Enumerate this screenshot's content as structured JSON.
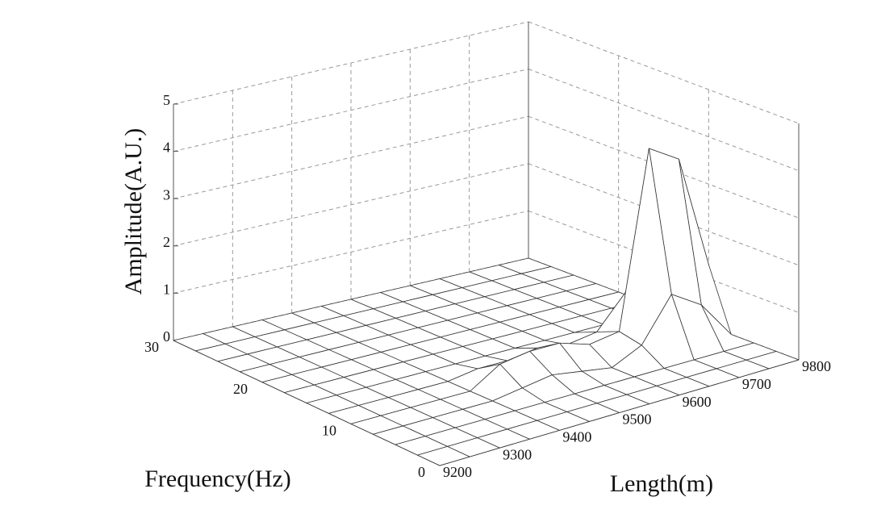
{
  "chart_data": {
    "type": "surface",
    "xlabel": "Length(m)",
    "ylabel": "Frequency(Hz)",
    "zlabel": "Amplitude(A.U.)",
    "x": [
      9200,
      9250,
      9300,
      9350,
      9400,
      9450,
      9500,
      9550,
      9600,
      9650,
      9700,
      9750,
      9800
    ],
    "y": [
      0,
      2.5,
      5,
      7.5,
      10,
      12.5,
      15,
      17.5,
      20,
      22.5,
      25,
      27.5,
      30
    ],
    "z": [
      [
        0,
        0,
        0,
        0,
        0,
        0,
        0,
        0,
        0,
        0,
        0,
        0,
        0
      ],
      [
        0,
        0,
        0,
        0,
        0,
        0,
        0,
        0,
        0,
        0,
        0,
        0,
        0
      ],
      [
        0,
        0,
        0,
        0,
        0,
        0,
        0,
        0,
        0,
        0,
        0,
        0,
        0
      ],
      [
        0,
        0,
        0,
        0,
        0,
        0.1,
        0.2,
        0.1,
        0,
        0.3,
        1.2,
        0.8,
        0
      ],
      [
        0,
        0,
        0,
        0,
        0,
        0.4,
        0.5,
        0.5,
        0.3,
        0.4,
        4.1,
        3.7,
        1.3
      ],
      [
        0,
        0,
        0,
        0,
        0,
        0.1,
        0.1,
        0.2,
        0.1,
        0.2,
        0.9,
        3.6,
        0.4
      ],
      [
        0,
        0,
        0,
        0,
        0,
        0,
        0,
        0,
        0,
        0,
        0,
        0,
        0
      ],
      [
        0,
        0,
        0,
        0,
        0,
        0,
        0,
        0,
        0,
        0,
        0,
        0,
        0
      ],
      [
        0,
        0,
        0,
        0,
        0,
        0,
        0,
        0,
        0,
        0,
        0,
        0,
        0
      ],
      [
        0,
        0,
        0,
        0,
        0,
        0,
        0,
        0,
        0,
        0,
        0,
        0,
        0
      ],
      [
        0,
        0,
        0,
        0,
        0,
        0,
        0,
        0,
        0,
        0,
        0,
        0,
        0
      ],
      [
        0,
        0,
        0,
        0,
        0,
        0,
        0,
        0,
        0,
        0,
        0,
        0,
        0
      ],
      [
        0,
        0,
        0,
        0,
        0,
        0,
        0,
        0,
        0,
        0,
        0,
        0,
        0
      ]
    ],
    "xlim": [
      9200,
      9800
    ],
    "xticks": [
      9200,
      9300,
      9400,
      9500,
      9600,
      9700,
      9800
    ],
    "ylim": [
      0,
      30
    ],
    "yticks": [
      0,
      10,
      20,
      30
    ],
    "zlim": [
      0,
      5
    ],
    "zticks": [
      0,
      1,
      2,
      3,
      4,
      5
    ],
    "grid": true,
    "color": "#333333",
    "face_color": "#ffffff"
  }
}
